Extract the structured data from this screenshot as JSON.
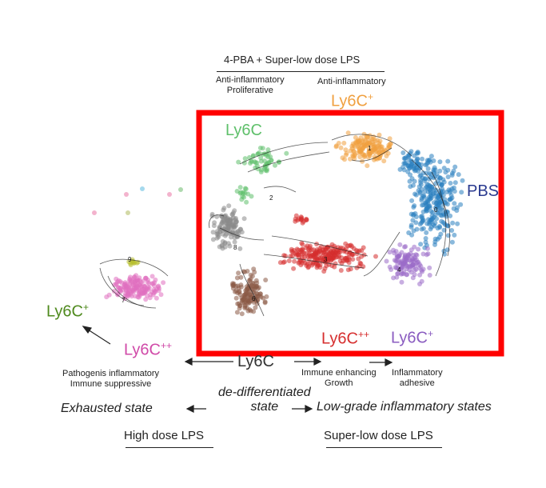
{
  "top_condition": "4-PBA + Super-low dose LPS",
  "top_left_note": [
    "Anti-inflammatory",
    "Proliferative"
  ],
  "top_right_note": "Anti-inflammatory",
  "clusters": {
    "ly6c_green_top": "Ly6C",
    "ly6c_orange": "Ly6C",
    "ly6c_orange_sup": "+",
    "pbs": "PBS",
    "ly6c_green_left": "Ly6C",
    "ly6c_green_left_sup": "+",
    "ly6c_pink": "Ly6C",
    "ly6c_pink_sup": "++",
    "ly6c_center": "Ly6C",
    "ly6c_red": "Ly6C",
    "ly6c_red_sup": "++",
    "ly6c_purple": "Ly6C",
    "ly6c_purple_sup": "+"
  },
  "cluster_numbers": [
    "0",
    "1",
    "2",
    "3",
    "4",
    "6",
    "7",
    "8",
    "9"
  ],
  "notes": {
    "pathogenic": [
      "Pathogenis inflammatory",
      "Immune suppressive"
    ],
    "enhancing": [
      "Immune enhancing",
      "Growth"
    ],
    "adhesive": [
      "Inflammatory",
      "adhesive"
    ]
  },
  "states": {
    "exhausted": "Exhausted state",
    "dedifferentiated": [
      "de-differentiated",
      "state"
    ],
    "low_grade": "Low-grade inflammatory states"
  },
  "doses": {
    "high": "High dose LPS",
    "super_low": "Super-low dose LPS"
  },
  "colors": {
    "green": "#5fc06b",
    "orange": "#f0a040",
    "blue": "#2a7fbf",
    "pbs_label": "#2a3a8f",
    "red": "#d62e2e",
    "purple": "#9a6cc8",
    "gray": "#8a8a8a",
    "brown": "#8b5a45",
    "pink": "#e070c0",
    "olive": "#b8c030",
    "left_green": "#4f8a1e",
    "highlight_box": "#ff0000"
  }
}
